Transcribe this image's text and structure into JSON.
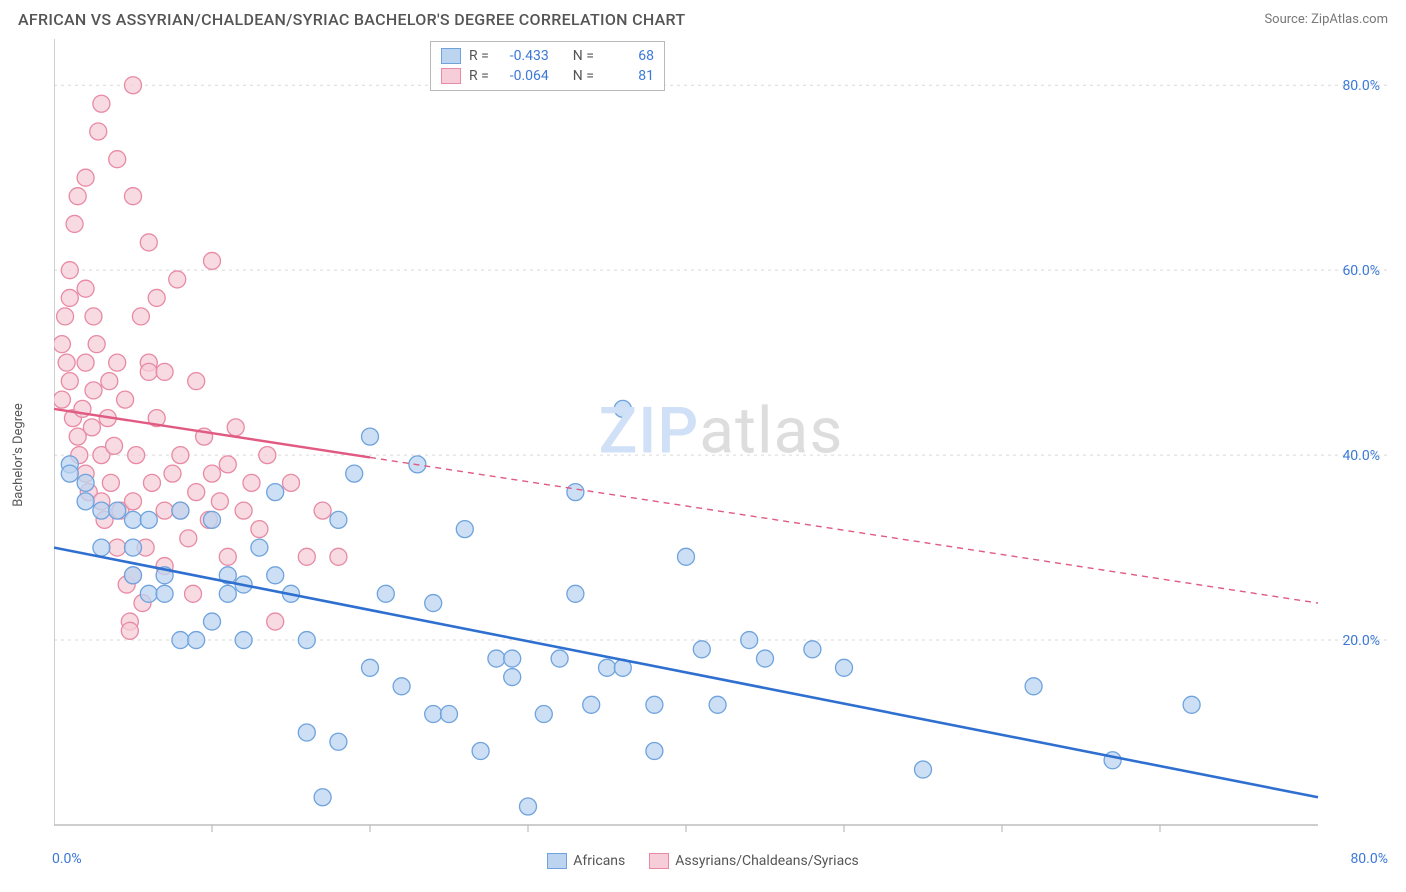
{
  "header": {
    "title": "AFRICAN VS ASSYRIAN/CHALDEAN/SYRIAC BACHELOR'S DEGREE CORRELATION CHART",
    "source_label": "Source:",
    "source_value": "ZipAtlas.com"
  },
  "chart": {
    "type": "scatter",
    "ylabel": "Bachelor's Degree",
    "xlim": [
      0,
      80
    ],
    "ylim": [
      0,
      85
    ],
    "yticks": [
      20,
      40,
      60,
      80
    ],
    "ytick_labels": [
      "20.0%",
      "40.0%",
      "60.0%",
      "80.0%"
    ],
    "xticks": [
      10,
      20,
      30,
      40,
      50,
      60,
      70
    ],
    "xaxis_min_label": "0.0%",
    "xaxis_max_label": "80.0%",
    "background_color": "#ffffff",
    "grid_color": "#d9d9d9",
    "axis_color": "#bdbdbd",
    "watermark": {
      "zip": "ZIP",
      "atlas": "atlas"
    },
    "series": [
      {
        "id": "africans",
        "label": "Africans",
        "R": "-0.433",
        "N": "68",
        "point_fill": "#bcd4f0",
        "point_stroke": "#6fa3dd",
        "line_color": "#2f6fd0",
        "line_dash": "",
        "trend": {
          "x1": 0,
          "y1": 30,
          "x2": 80,
          "y2": 3
        },
        "points": [
          [
            1,
            39
          ],
          [
            1,
            38
          ],
          [
            2,
            37
          ],
          [
            2,
            35
          ],
          [
            3,
            34
          ],
          [
            3,
            30
          ],
          [
            4,
            34
          ],
          [
            5,
            30
          ],
          [
            5,
            33
          ],
          [
            5,
            27
          ],
          [
            6,
            25
          ],
          [
            6,
            33
          ],
          [
            7,
            25
          ],
          [
            7,
            27
          ],
          [
            8,
            20
          ],
          [
            8,
            34
          ],
          [
            9,
            20
          ],
          [
            10,
            33
          ],
          [
            10,
            22
          ],
          [
            11,
            25
          ],
          [
            11,
            27
          ],
          [
            12,
            20
          ],
          [
            12,
            26
          ],
          [
            13,
            30
          ],
          [
            14,
            27
          ],
          [
            14,
            36
          ],
          [
            15,
            25
          ],
          [
            16,
            10
          ],
          [
            16,
            20
          ],
          [
            17,
            3
          ],
          [
            18,
            9
          ],
          [
            18,
            33
          ],
          [
            19,
            38
          ],
          [
            20,
            42
          ],
          [
            20,
            17
          ],
          [
            21,
            25
          ],
          [
            22,
            15
          ],
          [
            23,
            39
          ],
          [
            24,
            12
          ],
          [
            24,
            24
          ],
          [
            25,
            12
          ],
          [
            26,
            32
          ],
          [
            27,
            8
          ],
          [
            28,
            18
          ],
          [
            29,
            18
          ],
          [
            29,
            16
          ],
          [
            30,
            2
          ],
          [
            31,
            12
          ],
          [
            32,
            18
          ],
          [
            33,
            25
          ],
          [
            33,
            36
          ],
          [
            34,
            13
          ],
          [
            35,
            17
          ],
          [
            36,
            45
          ],
          [
            36,
            17
          ],
          [
            38,
            13
          ],
          [
            38,
            8
          ],
          [
            40,
            29
          ],
          [
            41,
            19
          ],
          [
            42,
            13
          ],
          [
            44,
            20
          ],
          [
            45,
            18
          ],
          [
            48,
            19
          ],
          [
            50,
            17
          ],
          [
            55,
            6
          ],
          [
            62,
            15
          ],
          [
            67,
            7
          ],
          [
            72,
            13
          ]
        ]
      },
      {
        "id": "assyrians",
        "label": "Assyrians/Chaldeans/Syriacs",
        "R": "-0.064",
        "N": "81",
        "point_fill": "#f6cdd8",
        "point_stroke": "#e88aa4",
        "line_color": "#e05a82",
        "line_dash": "6 5",
        "trend": {
          "x1": 0,
          "y1": 45,
          "x2": 80,
          "y2": 24
        },
        "points": [
          [
            0.5,
            46
          ],
          [
            0.5,
            52
          ],
          [
            0.7,
            55
          ],
          [
            0.8,
            50
          ],
          [
            1,
            57
          ],
          [
            1,
            60
          ],
          [
            1,
            48
          ],
          [
            1.2,
            44
          ],
          [
            1.3,
            65
          ],
          [
            1.5,
            68
          ],
          [
            1.5,
            42
          ],
          [
            1.6,
            40
          ],
          [
            1.8,
            45
          ],
          [
            2,
            58
          ],
          [
            2,
            50
          ],
          [
            2,
            70
          ],
          [
            2,
            38
          ],
          [
            2.2,
            36
          ],
          [
            2.4,
            43
          ],
          [
            2.5,
            47
          ],
          [
            2.5,
            55
          ],
          [
            2.7,
            52
          ],
          [
            2.8,
            75
          ],
          [
            3,
            78
          ],
          [
            3,
            40
          ],
          [
            3,
            35
          ],
          [
            3.2,
            33
          ],
          [
            3.4,
            44
          ],
          [
            3.5,
            48
          ],
          [
            3.6,
            37
          ],
          [
            3.8,
            41
          ],
          [
            4,
            50
          ],
          [
            4,
            72
          ],
          [
            4,
            30
          ],
          [
            4.2,
            34
          ],
          [
            4.5,
            46
          ],
          [
            4.6,
            26
          ],
          [
            4.8,
            22
          ],
          [
            5,
            80
          ],
          [
            5,
            68
          ],
          [
            5,
            27
          ],
          [
            5,
            35
          ],
          [
            5.2,
            40
          ],
          [
            5.5,
            55
          ],
          [
            5.6,
            24
          ],
          [
            5.8,
            30
          ],
          [
            6,
            50
          ],
          [
            6,
            49
          ],
          [
            6,
            63
          ],
          [
            6.2,
            37
          ],
          [
            6.5,
            44
          ],
          [
            6.5,
            57
          ],
          [
            7,
            28
          ],
          [
            7,
            49
          ],
          [
            7,
            34
          ],
          [
            7.5,
            38
          ],
          [
            7.8,
            59
          ],
          [
            8,
            40
          ],
          [
            8,
            34
          ],
          [
            8.5,
            31
          ],
          [
            8.8,
            25
          ],
          [
            9,
            36
          ],
          [
            9,
            48
          ],
          [
            9.5,
            42
          ],
          [
            9.8,
            33
          ],
          [
            10,
            38
          ],
          [
            10,
            61
          ],
          [
            10.5,
            35
          ],
          [
            11,
            29
          ],
          [
            11,
            39
          ],
          [
            11.5,
            43
          ],
          [
            12,
            34
          ],
          [
            12.5,
            37
          ],
          [
            13,
            32
          ],
          [
            13.5,
            40
          ],
          [
            14,
            22
          ],
          [
            15,
            37
          ],
          [
            16,
            29
          ],
          [
            17,
            34
          ],
          [
            18,
            29
          ],
          [
            4.8,
            21
          ]
        ]
      }
    ],
    "legend_top": {
      "R_label": "R =",
      "N_label": "N ="
    }
  }
}
